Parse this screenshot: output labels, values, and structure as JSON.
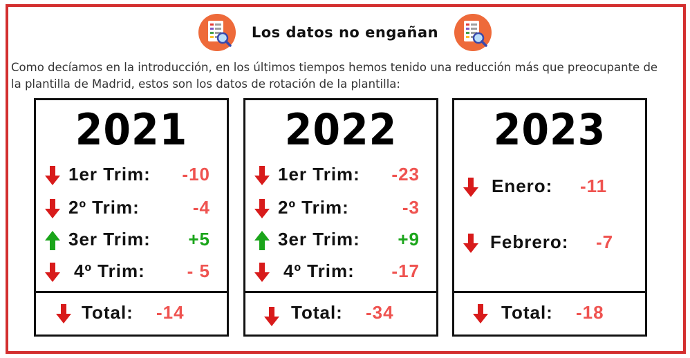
{
  "header": {
    "title": "Los datos no engañan",
    "left_icon": "document-search-icon",
    "right_icon": "document-search-icon"
  },
  "intro": "Como decíamos en la introducción, en los últimos tiempos hemos tenido una reducción más que preocupante de la plantilla de Madrid, estos son los datos de rotación de la plantilla:",
  "colors": {
    "border": "#d32f2f",
    "negative": "#ef5350",
    "positive": "#1aa51a"
  },
  "cards": [
    {
      "year": "2021",
      "rows": [
        {
          "label": "1er Trim:",
          "value": "-10",
          "trend": "down"
        },
        {
          "label": "2º  Trim:",
          "value": "-4",
          "trend": "down"
        },
        {
          "label": "3er Trim:",
          "value": "+5",
          "trend": "up"
        },
        {
          "label": "4º Trim:",
          "value": "- 5",
          "trend": "down"
        }
      ],
      "total_label": "Total:",
      "total_value": "-14"
    },
    {
      "year": "2022",
      "rows": [
        {
          "label": "1er Trim:",
          "value": "-23",
          "trend": "down"
        },
        {
          "label": "2º  Trim:",
          "value": "-3",
          "trend": "down"
        },
        {
          "label": "3er Trim:",
          "value": "+9",
          "trend": "up"
        },
        {
          "label": "4º Trim:",
          "value": "-17",
          "trend": "down"
        }
      ],
      "total_label": "Total:",
      "total_value": "-34"
    },
    {
      "year": "2023",
      "rows": [
        {
          "label": "Enero:",
          "value": "-11",
          "trend": "down"
        },
        {
          "label": "Febrero:",
          "value": "-7",
          "trend": "down"
        }
      ],
      "total_label": "Total:",
      "total_value": "-18"
    }
  ]
}
